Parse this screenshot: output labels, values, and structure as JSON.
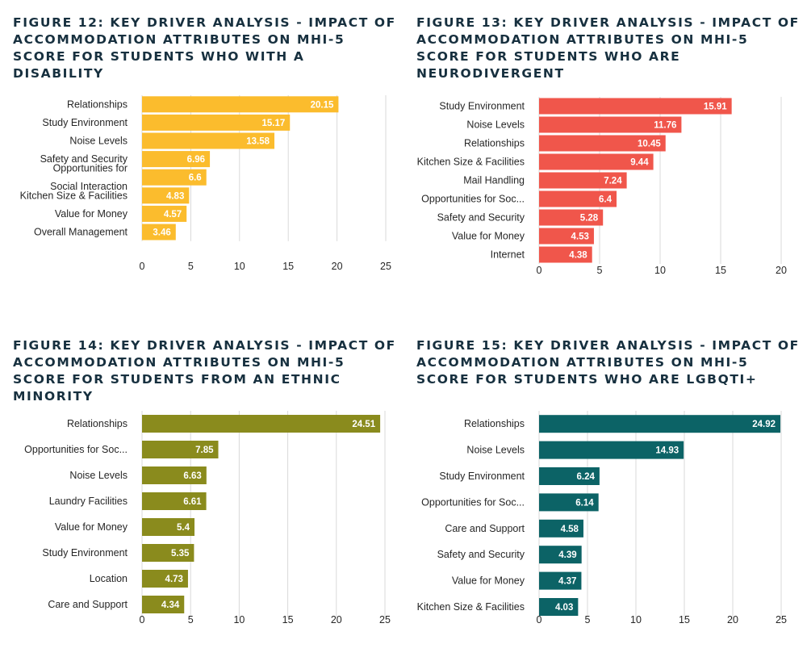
{
  "chart_data": [
    {
      "type": "bar",
      "orientation": "horizontal",
      "title": "FIGURE 12: KEY DRIVER ANALYSIS - IMPACT OF ACCOMMODATION ATTRIBUTES ON MHI-5 SCORE FOR STUDENTS WHO WITH A DISABILITY",
      "categories": [
        "Relationships",
        "Study Environment",
        "Noise Levels",
        "Safety and Security",
        "Opportunities for\nSocial Interaction",
        "Kitchen Size & Facilities",
        "Value for Money",
        "Overall Management"
      ],
      "values": [
        20.15,
        15.17,
        13.58,
        6.96,
        6.6,
        4.83,
        4.57,
        3.46
      ],
      "value_labels": [
        "20.15",
        "15.17",
        "13.58",
        "6.96",
        "6.6",
        "4.83",
        "4.57",
        "3.46"
      ],
      "xlim": [
        0,
        25
      ],
      "xticks": [
        0,
        5,
        10,
        15,
        20,
        25
      ],
      "grid": true,
      "color": "#fbbc2d"
    },
    {
      "type": "bar",
      "orientation": "horizontal",
      "title": "FIGURE 13: KEY DRIVER ANALYSIS - IMPACT OF ACCOMMODATION ATTRIBUTES ON MHI-5 SCORE FOR STUDENTS WHO ARE NEURODIVERGENT",
      "categories": [
        "Study Environment",
        "Noise Levels",
        "Relationships",
        "Kitchen Size & Facilities",
        "Mail Handling",
        "Opportunities for Soc...",
        "Safety and Security",
        "Value for Money",
        "Internet"
      ],
      "values": [
        15.91,
        11.76,
        10.45,
        9.44,
        7.24,
        6.4,
        5.28,
        4.53,
        4.38
      ],
      "value_labels": [
        "15.91",
        "11.76",
        "10.45",
        "9.44",
        "7.24",
        "6.4",
        "5.28",
        "4.53",
        "4.38"
      ],
      "xlim": [
        0,
        20
      ],
      "xticks": [
        0,
        5,
        10,
        15,
        20
      ],
      "grid": true,
      "color": "#f0564b"
    },
    {
      "type": "bar",
      "orientation": "horizontal",
      "title": "FIGURE 14: KEY DRIVER ANALYSIS - IMPACT OF ACCOMMODATION ATTRIBUTES ON MHI-5 SCORE FOR STUDENTS FROM AN ETHNIC MINORITY",
      "categories": [
        "Relationships",
        "Opportunities for Soc...",
        "Noise Levels",
        "Laundry Facilities",
        "Value for Money",
        "Study Environment",
        "Location",
        "Care and Support"
      ],
      "values": [
        24.51,
        7.85,
        6.63,
        6.61,
        5.4,
        5.35,
        4.73,
        4.34
      ],
      "value_labels": [
        "24.51",
        "7.85",
        "6.63",
        "6.61",
        "5.4",
        "5.35",
        "4.73",
        "4.34"
      ],
      "xlim": [
        0,
        25
      ],
      "xticks": [
        0,
        5,
        10,
        15,
        20,
        25
      ],
      "grid": true,
      "color": "#8a8b1d"
    },
    {
      "type": "bar",
      "orientation": "horizontal",
      "title": "FIGURE 15: KEY DRIVER ANALYSIS - IMPACT OF ACCOMMODATION ATTRIBUTES ON MHI-5 SCORE FOR STUDENTS WHO ARE LGBQTI+",
      "categories": [
        "Relationships",
        "Noise Levels",
        "Study Environment",
        "Opportunities for Soc...",
        "Care and Support",
        "Safety and Security",
        "Value for Money",
        "Kitchen Size & Facilities"
      ],
      "values": [
        24.92,
        14.93,
        6.24,
        6.14,
        4.58,
        4.39,
        4.37,
        4.03
      ],
      "value_labels": [
        "24.92",
        "14.93",
        "6.24",
        "6.14",
        "4.58",
        "4.39",
        "4.37",
        "4.03"
      ],
      "xlim": [
        0,
        25
      ],
      "xticks": [
        0,
        5,
        10,
        15,
        20,
        25
      ],
      "grid": true,
      "color": "#0c6366"
    }
  ]
}
